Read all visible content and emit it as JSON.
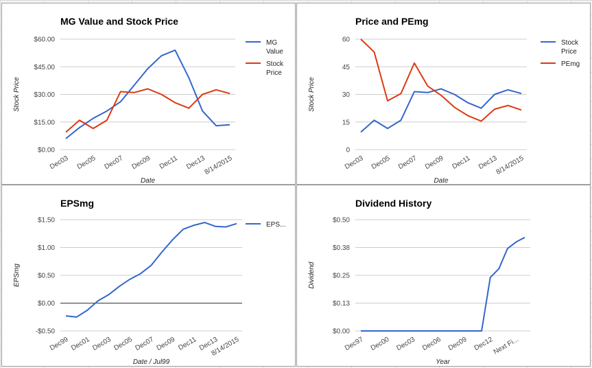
{
  "colors": {
    "blue": "#3366cc",
    "red": "#dc3912",
    "grid": "#cccccc",
    "zero": "#333333"
  },
  "chart_data": [
    {
      "id": "mg",
      "type": "line",
      "title": "MG Value and Stock Price",
      "xlabel": "Date",
      "ylabel": "Stock Price",
      "ylim": [
        0,
        60
      ],
      "yticks": [
        {
          "v": 0,
          "label": "$0.00"
        },
        {
          "v": 15,
          "label": "$15.00"
        },
        {
          "v": 30,
          "label": "$30.00"
        },
        {
          "v": 45,
          "label": "$45.00"
        },
        {
          "v": 60,
          "label": "$60.00"
        }
      ],
      "x_tick_labels": [
        "Dec03",
        "Dec05",
        "Dec07",
        "Dec09",
        "Dec11",
        "Dec13",
        "8/14/2015"
      ],
      "x_tick_positions": [
        0,
        2,
        4,
        6,
        8,
        10,
        12
      ],
      "x": [
        0,
        1,
        2,
        3,
        4,
        5,
        6,
        7,
        8,
        9,
        10,
        11,
        12
      ],
      "series": [
        {
          "name": "MG Value",
          "legend": [
            "MG",
            "Value"
          ],
          "color": "#3366cc",
          "values": [
            6,
            12,
            17,
            21,
            26,
            35,
            44,
            51,
            54,
            39,
            21,
            13,
            13.5
          ]
        },
        {
          "name": "Stock Price",
          "legend": [
            "Stock",
            "Price"
          ],
          "color": "#dc3912",
          "values": [
            9.5,
            16,
            11.5,
            16,
            31.5,
            31,
            33,
            30,
            25.5,
            22.5,
            30,
            32.5,
            30.5
          ]
        }
      ]
    },
    {
      "id": "pe",
      "type": "line",
      "title": "Price and PEmg",
      "xlabel": "Date",
      "ylabel": "Stock Price",
      "ylim": [
        0,
        60
      ],
      "yticks": [
        {
          "v": 0,
          "label": "0"
        },
        {
          "v": 15,
          "label": "15"
        },
        {
          "v": 30,
          "label": "30"
        },
        {
          "v": 45,
          "label": "45"
        },
        {
          "v": 60,
          "label": "60"
        }
      ],
      "x_tick_labels": [
        "Dec03",
        "Dec05",
        "Dec07",
        "Dec09",
        "Dec11",
        "Dec13",
        "8/14/2015"
      ],
      "x_tick_positions": [
        0,
        2,
        4,
        6,
        8,
        10,
        12
      ],
      "x": [
        0,
        1,
        2,
        3,
        4,
        5,
        6,
        7,
        8,
        9,
        10,
        11,
        12
      ],
      "series": [
        {
          "name": "Stock Price",
          "legend": [
            "Stock",
            "Price"
          ],
          "color": "#3366cc",
          "values": [
            9.5,
            16,
            11.5,
            16,
            31.5,
            31,
            33,
            30,
            25.5,
            22.5,
            30,
            32.5,
            30.5
          ]
        },
        {
          "name": "PEmg",
          "legend": [
            "PEmg"
          ],
          "color": "#dc3912",
          "values": [
            60,
            53,
            26.5,
            30.5,
            47,
            34.5,
            29.5,
            23,
            18.5,
            15.5,
            22,
            24,
            21.5
          ]
        }
      ]
    },
    {
      "id": "eps",
      "type": "line",
      "title": "EPSmg",
      "xlabel": "Date / Jul99",
      "ylabel": "EPSmg",
      "ylim": [
        -0.5,
        1.5
      ],
      "zero_line": true,
      "yticks": [
        {
          "v": -0.5,
          "label": "-$0.50"
        },
        {
          "v": 0,
          "label": "$0.00"
        },
        {
          "v": 0.5,
          "label": "$0.50"
        },
        {
          "v": 1,
          "label": "$1.00"
        },
        {
          "v": 1.5,
          "label": "$1.50"
        }
      ],
      "x_tick_labels": [
        "Dec99",
        "Dec01",
        "Dec03",
        "Dec05",
        "Dec07",
        "Dec09",
        "Dec11",
        "Dec13",
        "8/14/2015"
      ],
      "x_tick_positions": [
        0,
        2,
        4,
        6,
        8,
        10,
        12,
        14,
        16
      ],
      "x": [
        0,
        1,
        2,
        3,
        4,
        5,
        6,
        7,
        8,
        9,
        10,
        11,
        12,
        13,
        14,
        15,
        16
      ],
      "series": [
        {
          "name": "EPS...",
          "legend": [
            "EPS..."
          ],
          "color": "#3366cc",
          "values": [
            -0.23,
            -0.25,
            -0.13,
            0.04,
            0.15,
            0.3,
            0.43,
            0.53,
            0.68,
            0.92,
            1.14,
            1.33,
            1.4,
            1.45,
            1.38,
            1.37,
            1.43
          ]
        }
      ]
    },
    {
      "id": "div",
      "type": "line",
      "title": "Dividend History",
      "xlabel": "Year",
      "ylabel": "Dividend",
      "ylim": [
        0,
        0.5
      ],
      "yticks": [
        {
          "v": 0,
          "label": "$0.00"
        },
        {
          "v": 0.125,
          "label": "$0.13"
        },
        {
          "v": 0.25,
          "label": "$0.25"
        },
        {
          "v": 0.375,
          "label": "$0.38"
        },
        {
          "v": 0.5,
          "label": "$0.50"
        }
      ],
      "x_tick_labels": [
        "Dec97",
        "Dec00",
        "Dec03",
        "Dec06",
        "Dec09",
        "Dec12",
        "Next Fi..."
      ],
      "x_tick_positions": [
        0,
        3,
        6,
        9,
        12,
        15,
        18
      ],
      "x": [
        0,
        1,
        2,
        3,
        4,
        5,
        6,
        7,
        8,
        9,
        10,
        11,
        12,
        13,
        14,
        15,
        16,
        17,
        18,
        19
      ],
      "series": [
        {
          "name": "Dividend",
          "color": "#3366cc",
          "values": [
            0,
            0,
            0,
            0,
            0,
            0,
            0,
            0,
            0,
            0,
            0,
            0,
            0,
            0,
            0,
            0.24,
            0.28,
            0.37,
            0.4,
            0.42
          ]
        }
      ]
    }
  ]
}
